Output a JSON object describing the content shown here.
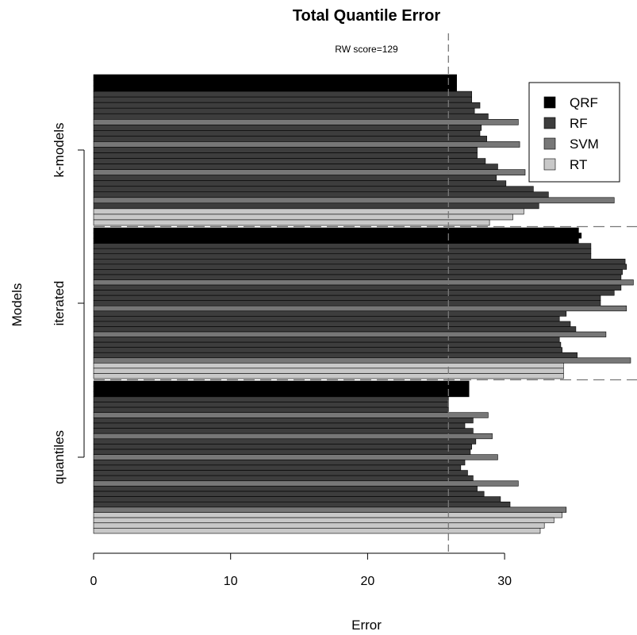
{
  "chart_data": {
    "type": "bar",
    "orientation": "horizontal",
    "title": "Total Quantile Error",
    "subtitle": "RW score=129",
    "xlabel": "Error",
    "ylabel": "Models",
    "xlim": [
      0,
      39.5
    ],
    "xticks": [
      0,
      10,
      20,
      30
    ],
    "reference_line": {
      "value": 25.9,
      "style": "dashed"
    },
    "legend": {
      "position": "top-right",
      "entries": [
        {
          "name": "QRF",
          "color": "#000000"
        },
        {
          "name": "RF",
          "color": "#3d3d3d"
        },
        {
          "name": "SVM",
          "color": "#777777"
        },
        {
          "name": "RT",
          "color": "#c8c8c8"
        }
      ]
    },
    "groups": [
      {
        "label": "k-models",
        "bars": [
          {
            "series": "QRF",
            "value": 26.5
          },
          {
            "series": "QRF",
            "value": 26.5
          },
          {
            "series": "QRF",
            "value": 26.5
          },
          {
            "series": "RF",
            "value": 27.6
          },
          {
            "series": "RF",
            "value": 27.6
          },
          {
            "series": "RF",
            "value": 28.2
          },
          {
            "series": "RF",
            "value": 27.8
          },
          {
            "series": "RF",
            "value": 28.8
          },
          {
            "series": "SVM",
            "value": 31.0
          },
          {
            "series": "RF",
            "value": 28.3
          },
          {
            "series": "RF",
            "value": 28.2
          },
          {
            "series": "RF",
            "value": 28.7
          },
          {
            "series": "SVM",
            "value": 31.1
          },
          {
            "series": "RF",
            "value": 28.0
          },
          {
            "series": "RF",
            "value": 28.0
          },
          {
            "series": "RF",
            "value": 28.6
          },
          {
            "series": "RF",
            "value": 29.5
          },
          {
            "series": "SVM",
            "value": 31.5
          },
          {
            "series": "RF",
            "value": 29.4
          },
          {
            "series": "RF",
            "value": 30.1
          },
          {
            "series": "RF",
            "value": 32.1
          },
          {
            "series": "RF",
            "value": 33.2
          },
          {
            "series": "SVM",
            "value": 38.0
          },
          {
            "series": "RF",
            "value": 32.5
          },
          {
            "series": "RT",
            "value": 31.4
          },
          {
            "series": "RT",
            "value": 30.6
          },
          {
            "series": "RT",
            "value": 28.9
          }
        ]
      },
      {
        "label": "iterated",
        "bars": [
          {
            "series": "QRF",
            "value": 35.4
          },
          {
            "series": "QRF",
            "value": 35.6
          },
          {
            "series": "QRF",
            "value": 35.4
          },
          {
            "series": "RF",
            "value": 36.3
          },
          {
            "series": "RF",
            "value": 36.3
          },
          {
            "series": "RF",
            "value": 36.3
          },
          {
            "series": "RF",
            "value": 38.8
          },
          {
            "series": "RF",
            "value": 38.9
          },
          {
            "series": "RF",
            "value": 38.6
          },
          {
            "series": "RF",
            "value": 38.5
          },
          {
            "series": "SVM",
            "value": 39.4
          },
          {
            "series": "RF",
            "value": 38.5
          },
          {
            "series": "RF",
            "value": 38.0
          },
          {
            "series": "RF",
            "value": 37.0
          },
          {
            "series": "RF",
            "value": 37.0
          },
          {
            "series": "SVM",
            "value": 38.9
          },
          {
            "series": "RF",
            "value": 34.5
          },
          {
            "series": "RF",
            "value": 34.0
          },
          {
            "series": "RF",
            "value": 34.8
          },
          {
            "series": "RF",
            "value": 35.2
          },
          {
            "series": "SVM",
            "value": 37.4
          },
          {
            "series": "RF",
            "value": 34.0
          },
          {
            "series": "RF",
            "value": 34.1
          },
          {
            "series": "RF",
            "value": 34.2
          },
          {
            "series": "RF",
            "value": 35.3
          },
          {
            "series": "SVM",
            "value": 39.2
          },
          {
            "series": "RT",
            "value": 34.3
          },
          {
            "series": "RT",
            "value": 34.3
          },
          {
            "series": "RT",
            "value": 34.3
          }
        ]
      },
      {
        "label": "quantiles",
        "bars": [
          {
            "series": "QRF",
            "value": 27.4
          },
          {
            "series": "QRF",
            "value": 27.4
          },
          {
            "series": "QRF",
            "value": 27.4
          },
          {
            "series": "RF",
            "value": 25.9
          },
          {
            "series": "RF",
            "value": 25.9
          },
          {
            "series": "RF",
            "value": 25.9
          },
          {
            "series": "SVM",
            "value": 28.8
          },
          {
            "series": "RF",
            "value": 27.7
          },
          {
            "series": "RF",
            "value": 27.1
          },
          {
            "series": "RF",
            "value": 27.7
          },
          {
            "series": "SVM",
            "value": 29.1
          },
          {
            "series": "RF",
            "value": 27.9
          },
          {
            "series": "RF",
            "value": 27.6
          },
          {
            "series": "RF",
            "value": 27.5
          },
          {
            "series": "SVM",
            "value": 29.5
          },
          {
            "series": "RF",
            "value": 27.1
          },
          {
            "series": "RF",
            "value": 26.8
          },
          {
            "series": "RF",
            "value": 27.3
          },
          {
            "series": "RF",
            "value": 27.7
          },
          {
            "series": "SVM",
            "value": 31.0
          },
          {
            "series": "RF",
            "value": 28.0
          },
          {
            "series": "RF",
            "value": 28.5
          },
          {
            "series": "RF",
            "value": 29.7
          },
          {
            "series": "RF",
            "value": 30.4
          },
          {
            "series": "SVM",
            "value": 34.5
          },
          {
            "series": "RT",
            "value": 34.2
          },
          {
            "series": "RT",
            "value": 33.6
          },
          {
            "series": "RT",
            "value": 32.9
          },
          {
            "series": "RT",
            "value": 32.6
          }
        ]
      }
    ]
  }
}
